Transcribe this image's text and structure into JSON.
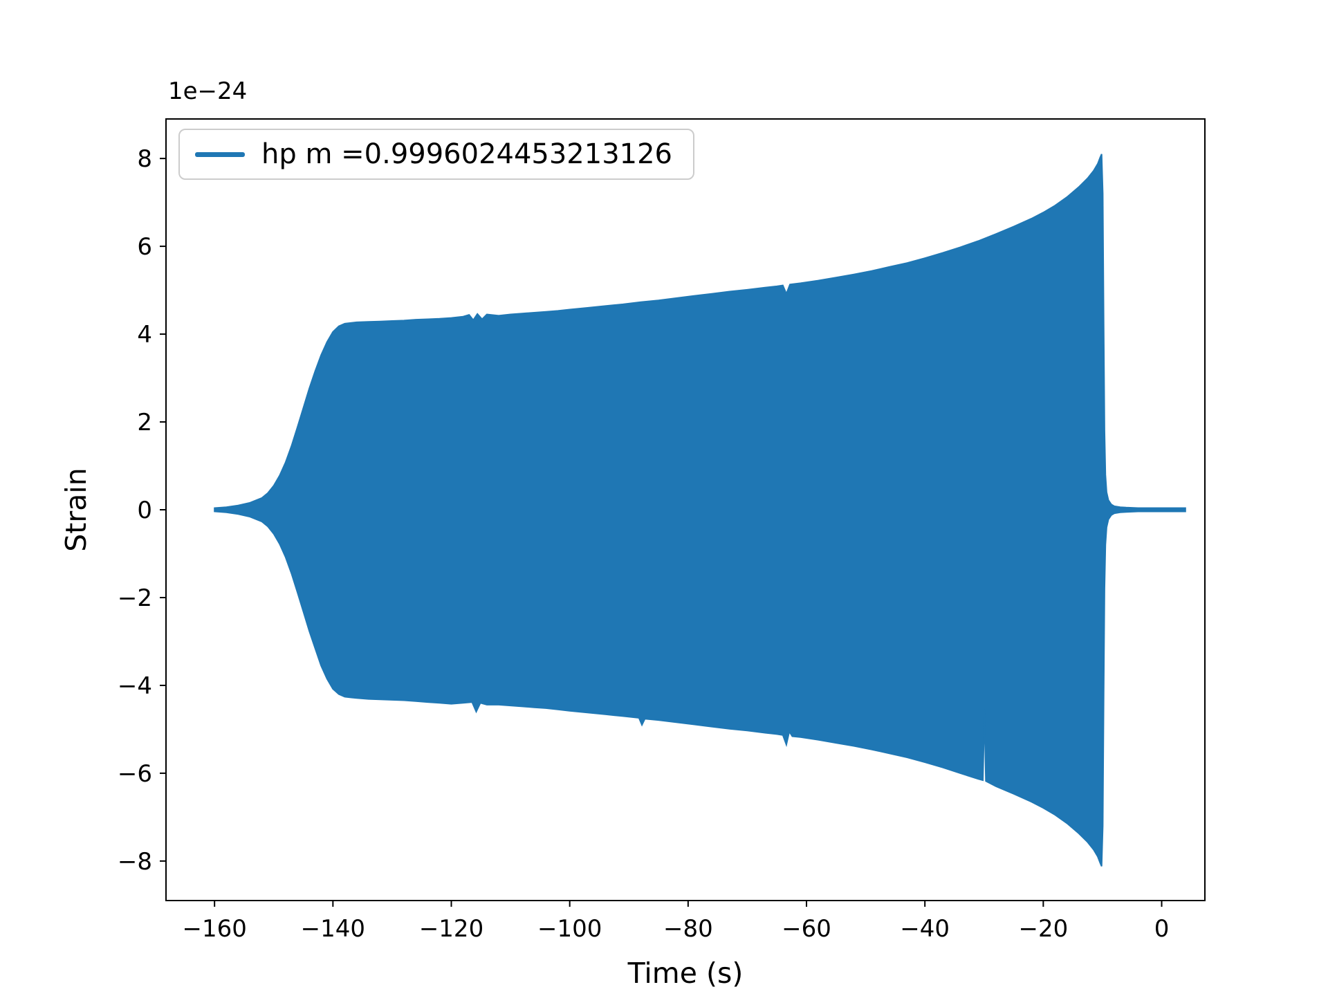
{
  "chart_data": {
    "type": "area",
    "title": "",
    "xlabel": "Time (s)",
    "ylabel": "Strain",
    "y_offset_label": "1e−24",
    "y_scale_exponent": -24,
    "xlim": [
      -168.2,
      7.3
    ],
    "ylim": [
      -8.9,
      8.9
    ],
    "x_ticks": [
      -160,
      -140,
      -120,
      -100,
      -80,
      -60,
      -40,
      -20,
      0
    ],
    "y_ticks": [
      -8,
      -6,
      -4,
      -2,
      0,
      2,
      4,
      6,
      8
    ],
    "grid": false,
    "legend_position": "upper left",
    "series": [
      {
        "name": "hp m =0.9996024453213126",
        "color": "#1f77b4",
        "description": "Dense oscillatory gravitational-wave chirp rendered as its amplitude envelope (units of 1e-24 strain)",
        "upper_envelope": [
          [
            -160.0,
            0.04
          ],
          [
            -158,
            0.06
          ],
          [
            -156,
            0.1
          ],
          [
            -154,
            0.16
          ],
          [
            -152,
            0.27
          ],
          [
            -151,
            0.38
          ],
          [
            -150,
            0.55
          ],
          [
            -149,
            0.78
          ],
          [
            -148,
            1.08
          ],
          [
            -147,
            1.45
          ],
          [
            -146,
            1.88
          ],
          [
            -145,
            2.32
          ],
          [
            -144,
            2.76
          ],
          [
            -143,
            3.16
          ],
          [
            -142,
            3.52
          ],
          [
            -141,
            3.82
          ],
          [
            -140,
            4.05
          ],
          [
            -139,
            4.18
          ],
          [
            -138,
            4.24
          ],
          [
            -136,
            4.27
          ],
          [
            -134,
            4.28
          ],
          [
            -132,
            4.29
          ],
          [
            -130,
            4.3
          ],
          [
            -128,
            4.31
          ],
          [
            -126,
            4.33
          ],
          [
            -124,
            4.34
          ],
          [
            -122,
            4.35
          ],
          [
            -120,
            4.37
          ],
          [
            -118,
            4.4
          ],
          [
            -117,
            4.44
          ],
          [
            -116.3,
            4.32
          ],
          [
            -115.6,
            4.46
          ],
          [
            -114.8,
            4.34
          ],
          [
            -114,
            4.45
          ],
          [
            -112,
            4.42
          ],
          [
            -110,
            4.45
          ],
          [
            -108,
            4.47
          ],
          [
            -106,
            4.49
          ],
          [
            -104,
            4.51
          ],
          [
            -102,
            4.53
          ],
          [
            -100,
            4.56
          ],
          [
            -97,
            4.6
          ],
          [
            -94,
            4.64
          ],
          [
            -91,
            4.68
          ],
          [
            -88,
            4.73
          ],
          [
            -85,
            4.77
          ],
          [
            -82,
            4.82
          ],
          [
            -79,
            4.87
          ],
          [
            -76,
            4.92
          ],
          [
            -73,
            4.97
          ],
          [
            -70,
            5.01
          ],
          [
            -67,
            5.06
          ],
          [
            -65,
            5.09
          ],
          [
            -64,
            5.11
          ],
          [
            -63.4,
            4.92
          ],
          [
            -62.8,
            5.13
          ],
          [
            -61,
            5.16
          ],
          [
            -58,
            5.22
          ],
          [
            -55,
            5.29
          ],
          [
            -52,
            5.36
          ],
          [
            -49,
            5.44
          ],
          [
            -46,
            5.53
          ],
          [
            -43,
            5.62
          ],
          [
            -40,
            5.73
          ],
          [
            -37,
            5.85
          ],
          [
            -34,
            5.98
          ],
          [
            -31,
            6.12
          ],
          [
            -28,
            6.28
          ],
          [
            -25,
            6.45
          ],
          [
            -22,
            6.63
          ],
          [
            -20,
            6.77
          ],
          [
            -18,
            6.93
          ],
          [
            -16,
            7.12
          ],
          [
            -14,
            7.35
          ],
          [
            -12.5,
            7.55
          ],
          [
            -11.5,
            7.72
          ],
          [
            -10.8,
            7.88
          ],
          [
            -10.4,
            8.02
          ],
          [
            -10.15,
            8.1
          ],
          [
            -9.95,
            7.2
          ],
          [
            -9.8,
            4.2
          ],
          [
            -9.65,
            1.8
          ],
          [
            -9.5,
            0.8
          ],
          [
            -9.3,
            0.4
          ],
          [
            -9.0,
            0.22
          ],
          [
            -8.5,
            0.12
          ],
          [
            -8.0,
            0.08
          ],
          [
            -7.0,
            0.06
          ],
          [
            -6.0,
            0.05
          ],
          [
            -4.0,
            0.04
          ],
          [
            -2.0,
            0.04
          ],
          [
            0.0,
            0.04
          ],
          [
            2.0,
            0.04
          ],
          [
            4.0,
            0.04
          ]
        ],
        "lower_envelope": [
          [
            -160.0,
            0.04
          ],
          [
            -158,
            0.06
          ],
          [
            -156,
            0.1
          ],
          [
            -154,
            0.16
          ],
          [
            -152,
            0.27
          ],
          [
            -151,
            0.38
          ],
          [
            -150,
            0.55
          ],
          [
            -149,
            0.78
          ],
          [
            -148,
            1.08
          ],
          [
            -147,
            1.45
          ],
          [
            -146,
            1.88
          ],
          [
            -145,
            2.32
          ],
          [
            -144,
            2.76
          ],
          [
            -143,
            3.16
          ],
          [
            -142,
            3.55
          ],
          [
            -141,
            3.85
          ],
          [
            -140,
            4.08
          ],
          [
            -139,
            4.2
          ],
          [
            -138,
            4.26
          ],
          [
            -136,
            4.29
          ],
          [
            -134,
            4.31
          ],
          [
            -132,
            4.32
          ],
          [
            -130,
            4.33
          ],
          [
            -128,
            4.34
          ],
          [
            -126,
            4.36
          ],
          [
            -124,
            4.38
          ],
          [
            -122,
            4.4
          ],
          [
            -120,
            4.42
          ],
          [
            -118,
            4.4
          ],
          [
            -116.5,
            4.38
          ],
          [
            -115.8,
            4.6
          ],
          [
            -115.1,
            4.4
          ],
          [
            -114,
            4.44
          ],
          [
            -112,
            4.44
          ],
          [
            -110,
            4.46
          ],
          [
            -108,
            4.48
          ],
          [
            -106,
            4.5
          ],
          [
            -104,
            4.52
          ],
          [
            -102,
            4.55
          ],
          [
            -100,
            4.58
          ],
          [
            -97,
            4.62
          ],
          [
            -94,
            4.66
          ],
          [
            -91,
            4.7
          ],
          [
            -88.3,
            4.74
          ],
          [
            -87.8,
            4.9
          ],
          [
            -87.3,
            4.76
          ],
          [
            -85,
            4.79
          ],
          [
            -82,
            4.84
          ],
          [
            -79,
            4.89
          ],
          [
            -76,
            4.94
          ],
          [
            -73,
            4.99
          ],
          [
            -70,
            5.03
          ],
          [
            -67,
            5.08
          ],
          [
            -65,
            5.11
          ],
          [
            -64,
            5.13
          ],
          [
            -63.4,
            5.35
          ],
          [
            -62.9,
            5.05
          ],
          [
            -62.4,
            5.16
          ],
          [
            -61,
            5.18
          ],
          [
            -58,
            5.24
          ],
          [
            -55,
            5.31
          ],
          [
            -52,
            5.38
          ],
          [
            -49,
            5.46
          ],
          [
            -46,
            5.55
          ],
          [
            -43,
            5.64
          ],
          [
            -40,
            5.75
          ],
          [
            -37,
            5.87
          ],
          [
            -34,
            6.0
          ],
          [
            -31,
            6.13
          ],
          [
            -30.2,
            6.16
          ],
          [
            -29.95,
            4.55
          ],
          [
            -29.7,
            6.18
          ],
          [
            -28,
            6.3
          ],
          [
            -25,
            6.47
          ],
          [
            -22,
            6.65
          ],
          [
            -20,
            6.79
          ],
          [
            -18,
            6.95
          ],
          [
            -16,
            7.14
          ],
          [
            -14,
            7.37
          ],
          [
            -12.5,
            7.57
          ],
          [
            -11.5,
            7.74
          ],
          [
            -10.8,
            7.9
          ],
          [
            -10.4,
            8.04
          ],
          [
            -10.15,
            8.12
          ],
          [
            -9.95,
            7.2
          ],
          [
            -9.8,
            4.2
          ],
          [
            -9.65,
            1.8
          ],
          [
            -9.5,
            0.8
          ],
          [
            -9.3,
            0.4
          ],
          [
            -9.0,
            0.22
          ],
          [
            -8.5,
            0.12
          ],
          [
            -8.0,
            0.08
          ],
          [
            -7.0,
            0.06
          ],
          [
            -6.0,
            0.05
          ],
          [
            -4.0,
            0.04
          ],
          [
            -2.0,
            0.04
          ],
          [
            0.0,
            0.04
          ],
          [
            2.0,
            0.04
          ],
          [
            4.0,
            0.04
          ]
        ]
      }
    ]
  },
  "legend": {
    "entry": "hp m =0.9996024453213126"
  }
}
